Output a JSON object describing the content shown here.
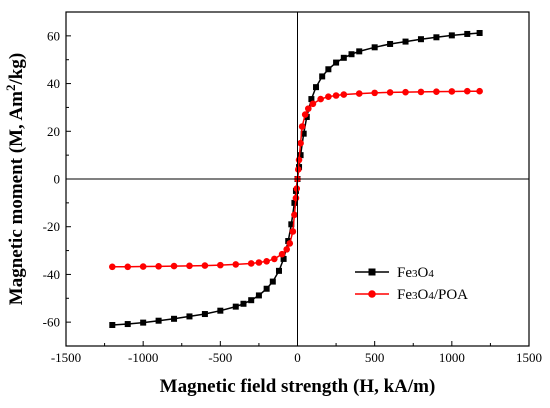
{
  "chart_data": {
    "type": "line",
    "xlabel": "Magnetic field strength (H, kA/m)",
    "ylabel": "Magnetic moment (M, Am²/kg)",
    "xlim": [
      -1500,
      1500
    ],
    "ylim": [
      -70,
      70
    ],
    "xticks": [
      -1500,
      -1000,
      -500,
      0,
      500,
      1000,
      1500
    ],
    "yticks": [
      -60,
      -40,
      -20,
      0,
      20,
      40,
      60
    ],
    "zero_lines": true,
    "grid": false,
    "legend_position": "bottom-right",
    "series": [
      {
        "name": "Fe3O4",
        "color": "#000000",
        "marker": "square",
        "x": [
          -1200,
          -1100,
          -1000,
          -900,
          -800,
          -700,
          -600,
          -500,
          -400,
          -350,
          -300,
          -250,
          -200,
          -160,
          -120,
          -90,
          -60,
          -40,
          -20,
          -10,
          0,
          10,
          20,
          40,
          60,
          90,
          120,
          160,
          200,
          250,
          300,
          350,
          400,
          500,
          600,
          700,
          800,
          900,
          1000,
          1100,
          1180
        ],
        "y": [
          -61.2,
          -60.8,
          -60.2,
          -59.4,
          -58.6,
          -57.6,
          -56.6,
          -55.2,
          -53.5,
          -52.3,
          -50.8,
          -48.8,
          -46.0,
          -43.0,
          -38.5,
          -33.5,
          -26.0,
          -19.0,
          -10.0,
          -5.0,
          0.0,
          5.0,
          10.0,
          19.0,
          26.0,
          33.5,
          38.5,
          43.0,
          46.0,
          48.8,
          50.8,
          52.3,
          53.5,
          55.2,
          56.6,
          57.6,
          58.6,
          59.4,
          60.2,
          60.8,
          61.2
        ]
      },
      {
        "name": "Fe3O4/POA",
        "color": "#ff0000",
        "marker": "circle",
        "x": [
          -1200,
          -1100,
          -1000,
          -900,
          -800,
          -700,
          -600,
          -500,
          -400,
          -300,
          -250,
          -200,
          -150,
          -100,
          -70,
          -50,
          -30,
          -20,
          -10,
          -5,
          0,
          5,
          10,
          20,
          30,
          50,
          70,
          100,
          150,
          200,
          250,
          300,
          400,
          500,
          600,
          700,
          800,
          900,
          1000,
          1100,
          1180
        ],
        "y": [
          -36.8,
          -36.8,
          -36.7,
          -36.6,
          -36.5,
          -36.4,
          -36.3,
          -36.1,
          -35.8,
          -35.4,
          -35.0,
          -34.5,
          -33.5,
          -31.5,
          -29.5,
          -27.0,
          -22.0,
          -15.0,
          -8.0,
          -4.0,
          0.0,
          4.0,
          8.0,
          15.0,
          22.0,
          27.0,
          29.5,
          31.5,
          33.5,
          34.5,
          35.0,
          35.4,
          35.8,
          36.1,
          36.3,
          36.4,
          36.5,
          36.6,
          36.7,
          36.8,
          36.8
        ]
      }
    ]
  },
  "legend": {
    "items": [
      {
        "formula": [
          "Fe",
          "3",
          "O",
          "4",
          ""
        ]
      },
      {
        "formula": [
          "Fe",
          "3",
          "O",
          "4",
          "/POA"
        ]
      }
    ]
  }
}
